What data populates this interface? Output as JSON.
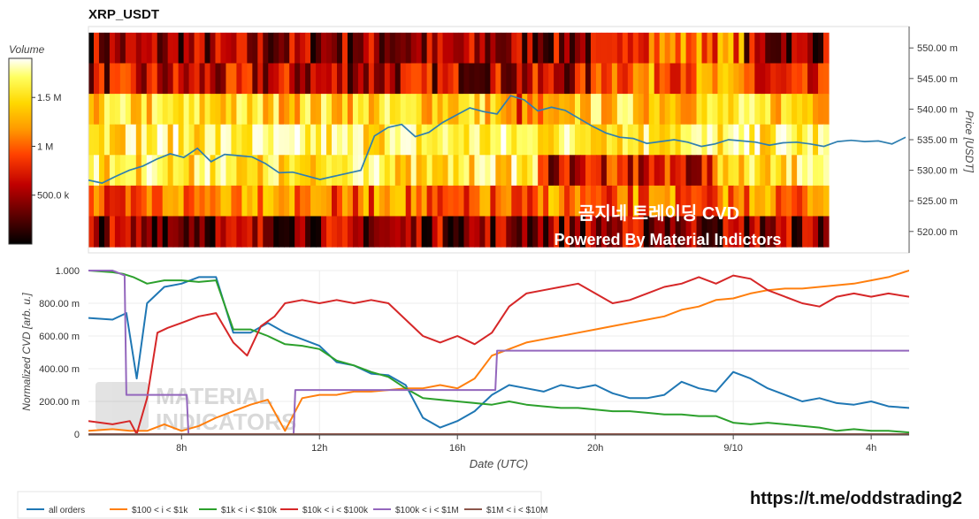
{
  "chart_data": [
    {
      "type": "heatmap",
      "title": "XRP_USDT",
      "ylabel": "Price [USDT]",
      "yticks": [
        "520.00 m",
        "525.00 m",
        "530.00 m",
        "535.00 m",
        "540.00 m",
        "545.00 m",
        "550.00 m"
      ],
      "ytick_values": [
        0.52,
        0.525,
        0.53,
        0.535,
        0.54,
        0.545,
        0.55
      ],
      "ylim": [
        0.5165,
        0.5535
      ],
      "price_bands": [
        0.55,
        0.545,
        0.54,
        0.535,
        0.53,
        0.525,
        0.52
      ],
      "colorbar": {
        "title": "Volume",
        "ticks": [
          "1.5 M",
          "1 M",
          "500.0 k"
        ],
        "tick_values": [
          1500000,
          1000000,
          500000
        ],
        "range": [
          0,
          1900000
        ],
        "colors": [
          "#000000",
          "#5a0000",
          "#c00000",
          "#ff4000",
          "#ff9a00",
          "#ffd800",
          "#ffff60",
          "#ffffff"
        ]
      },
      "watermark": [
        "곰지네 트레이딩 CVD",
        "Powered By Material Indictors"
      ],
      "price_line": {
        "color": "#2f7fb0",
        "x_hours": [
          0,
          1,
          2,
          3,
          4,
          5,
          6,
          7,
          8,
          9,
          10,
          11,
          12,
          13,
          14,
          15,
          16,
          17,
          18,
          19,
          20,
          21,
          22,
          23,
          24,
          25,
          26,
          27,
          28,
          29,
          30,
          31,
          32,
          33,
          34,
          35,
          36,
          37,
          38,
          39,
          40,
          41,
          42,
          43,
          44,
          45,
          46,
          47,
          48,
          49,
          50,
          51,
          52,
          53,
          54,
          55,
          56,
          57,
          58,
          59,
          60
        ],
        "y": [
          0.5284,
          0.5279,
          0.529,
          0.53,
          0.5307,
          0.5318,
          0.5327,
          0.5321,
          0.5336,
          0.5314,
          0.5326,
          0.5324,
          0.5322,
          0.5311,
          0.5296,
          0.5297,
          0.5291,
          0.5285,
          0.529,
          0.5295,
          0.53,
          0.5356,
          0.537,
          0.5375,
          0.5355,
          0.5362,
          0.5378,
          0.539,
          0.5402,
          0.5396,
          0.5392,
          0.5422,
          0.5415,
          0.5397,
          0.5403,
          0.5398,
          0.5385,
          0.5372,
          0.5361,
          0.5354,
          0.5352,
          0.5344,
          0.5347,
          0.535,
          0.5346,
          0.5339,
          0.5343,
          0.535,
          0.5348,
          0.5346,
          0.5341,
          0.5345,
          0.5346,
          0.5343,
          0.5339,
          0.5347,
          0.5349,
          0.5347,
          0.5348,
          0.5343,
          0.5354
        ]
      }
    },
    {
      "type": "line",
      "ylabel": "Normalized CVD [arb. u.]",
      "xlabel": "Date (UTC)",
      "x_tick_labels": [
        "8h",
        "12h",
        "16h",
        "20h",
        "9/10",
        "4h"
      ],
      "x_tick_hours": [
        8,
        12,
        16,
        20,
        24,
        28
      ],
      "xlim": [
        5.3,
        29.1
      ],
      "y_tick_labels": [
        "0",
        "200.00 m",
        "400.00 m",
        "600.00 m",
        "800.00 m",
        "1.000"
      ],
      "y_tick_values": [
        0,
        0.2,
        0.4,
        0.6,
        0.8,
        1.0
      ],
      "ylim": [
        0,
        1.0
      ],
      "watermark": [
        "MATERIAL",
        "INDICATORS"
      ],
      "series": [
        {
          "name": "all orders",
          "color": "#1f77b4",
          "x": [
            5.3,
            6,
            6.4,
            6.7,
            7,
            7.5,
            8,
            8.5,
            9,
            9.5,
            10,
            10.5,
            11,
            11.5,
            12,
            12.5,
            13,
            13.5,
            14,
            14.5,
            15,
            15.5,
            16,
            16.5,
            17,
            17.5,
            18,
            18.5,
            19,
            19.5,
            20,
            20.5,
            21,
            21.5,
            22,
            22.5,
            23,
            23.5,
            24,
            24.5,
            25,
            25.5,
            26,
            26.5,
            27,
            27.5,
            28,
            28.5,
            29.1
          ],
          "y": [
            0.71,
            0.7,
            0.74,
            0.34,
            0.8,
            0.9,
            0.92,
            0.96,
            0.96,
            0.62,
            0.62,
            0.68,
            0.62,
            0.58,
            0.54,
            0.44,
            0.42,
            0.37,
            0.36,
            0.3,
            0.1,
            0.04,
            0.08,
            0.14,
            0.24,
            0.3,
            0.28,
            0.26,
            0.3,
            0.28,
            0.3,
            0.25,
            0.22,
            0.22,
            0.24,
            0.32,
            0.28,
            0.26,
            0.38,
            0.34,
            0.28,
            0.24,
            0.2,
            0.22,
            0.19,
            0.18,
            0.2,
            0.17,
            0.16
          ]
        },
        {
          "name": "$100 < i < $1k",
          "color": "#ff7f0e",
          "x": [
            5.3,
            6,
            6.5,
            7,
            7.5,
            8,
            8.5,
            9,
            9.5,
            10,
            10.5,
            11,
            11.5,
            12,
            12.5,
            13,
            13.5,
            14,
            14.5,
            15,
            15.5,
            16,
            16.5,
            17,
            17.5,
            18,
            18.5,
            19,
            19.5,
            20,
            20.5,
            21,
            21.5,
            22,
            22.5,
            23,
            23.5,
            24,
            24.5,
            25,
            25.5,
            26,
            26.5,
            27,
            27.5,
            28,
            28.5,
            29.1
          ],
          "y": [
            0.02,
            0.03,
            0.02,
            0.02,
            0.06,
            0.02,
            0.05,
            0.1,
            0.14,
            0.18,
            0.21,
            0.02,
            0.22,
            0.24,
            0.24,
            0.26,
            0.26,
            0.27,
            0.28,
            0.28,
            0.3,
            0.28,
            0.34,
            0.48,
            0.52,
            0.56,
            0.58,
            0.6,
            0.62,
            0.64,
            0.66,
            0.68,
            0.7,
            0.72,
            0.76,
            0.78,
            0.82,
            0.83,
            0.86,
            0.88,
            0.89,
            0.89,
            0.9,
            0.91,
            0.92,
            0.94,
            0.96,
            1.0
          ]
        },
        {
          "name": "$1k < i < $10k",
          "color": "#2ca02c",
          "x": [
            5.3,
            6,
            6.3,
            6.6,
            7,
            7.5,
            8,
            8.5,
            9,
            9.5,
            10,
            10.5,
            11,
            11.5,
            12,
            12.5,
            13,
            13.5,
            14,
            14.5,
            15,
            15.5,
            16,
            16.5,
            17,
            17.5,
            18,
            18.5,
            19,
            19.5,
            20,
            20.5,
            21,
            21.5,
            22,
            22.5,
            23,
            23.5,
            24,
            24.5,
            25,
            25.5,
            26,
            26.5,
            27,
            27.5,
            28,
            28.5,
            29.1
          ],
          "y": [
            1.0,
            0.99,
            0.98,
            0.96,
            0.92,
            0.94,
            0.94,
            0.93,
            0.94,
            0.64,
            0.64,
            0.6,
            0.55,
            0.54,
            0.52,
            0.45,
            0.42,
            0.38,
            0.35,
            0.28,
            0.22,
            0.21,
            0.2,
            0.19,
            0.18,
            0.2,
            0.18,
            0.17,
            0.16,
            0.16,
            0.15,
            0.14,
            0.14,
            0.13,
            0.12,
            0.12,
            0.11,
            0.11,
            0.07,
            0.06,
            0.07,
            0.06,
            0.05,
            0.04,
            0.02,
            0.03,
            0.02,
            0.02,
            0.01
          ]
        },
        {
          "name": "$10k < i < $100k",
          "color": "#d62728",
          "x": [
            5.3,
            6,
            6.5,
            6.7,
            7,
            7.3,
            7.6,
            8,
            8.5,
            9,
            9.5,
            9.9,
            10.3,
            10.7,
            11,
            11.5,
            12,
            12.5,
            13,
            13.5,
            14,
            14.5,
            15,
            15.5,
            16,
            16.5,
            17,
            17.5,
            18,
            18.5,
            19,
            19.5,
            20,
            20.5,
            21,
            21.5,
            22,
            22.5,
            23,
            23.5,
            24,
            24.5,
            25,
            25.5,
            26,
            26.5,
            27,
            27.5,
            28,
            28.5,
            29.1
          ],
          "y": [
            0.08,
            0.06,
            0.08,
            0.0,
            0.22,
            0.62,
            0.65,
            0.68,
            0.72,
            0.74,
            0.56,
            0.48,
            0.66,
            0.72,
            0.8,
            0.82,
            0.8,
            0.82,
            0.8,
            0.82,
            0.8,
            0.7,
            0.6,
            0.56,
            0.6,
            0.55,
            0.62,
            0.78,
            0.86,
            0.88,
            0.9,
            0.92,
            0.86,
            0.8,
            0.82,
            0.86,
            0.9,
            0.92,
            0.96,
            0.92,
            0.97,
            0.95,
            0.88,
            0.84,
            0.8,
            0.78,
            0.84,
            0.86,
            0.84,
            0.86,
            0.84
          ]
        },
        {
          "name": "$100k < i < $1M",
          "color": "#9467bd",
          "x": [
            5.3,
            6,
            6.35,
            6.4,
            7.5,
            7.55,
            8.15,
            8.2,
            11.25,
            11.3,
            17.1,
            17.15,
            29.1
          ],
          "y": [
            1.0,
            1.0,
            0.97,
            0.24,
            0.24,
            0.24,
            0.24,
            0.0,
            0.0,
            0.27,
            0.27,
            0.51,
            0.51
          ]
        },
        {
          "name": "$1M < i < $10M",
          "color": "#8c564b",
          "x": [
            5.3,
            29.1
          ],
          "y": [
            0,
            0
          ]
        }
      ]
    }
  ],
  "legend": [
    "all orders",
    "$100 < i < $1k",
    "$1k < i < $10k",
    "$10k < i < $100k",
    "$100k < i < $1M",
    "$1M < i < $10M"
  ],
  "footer_link": "https://t.me/oddstrading2"
}
